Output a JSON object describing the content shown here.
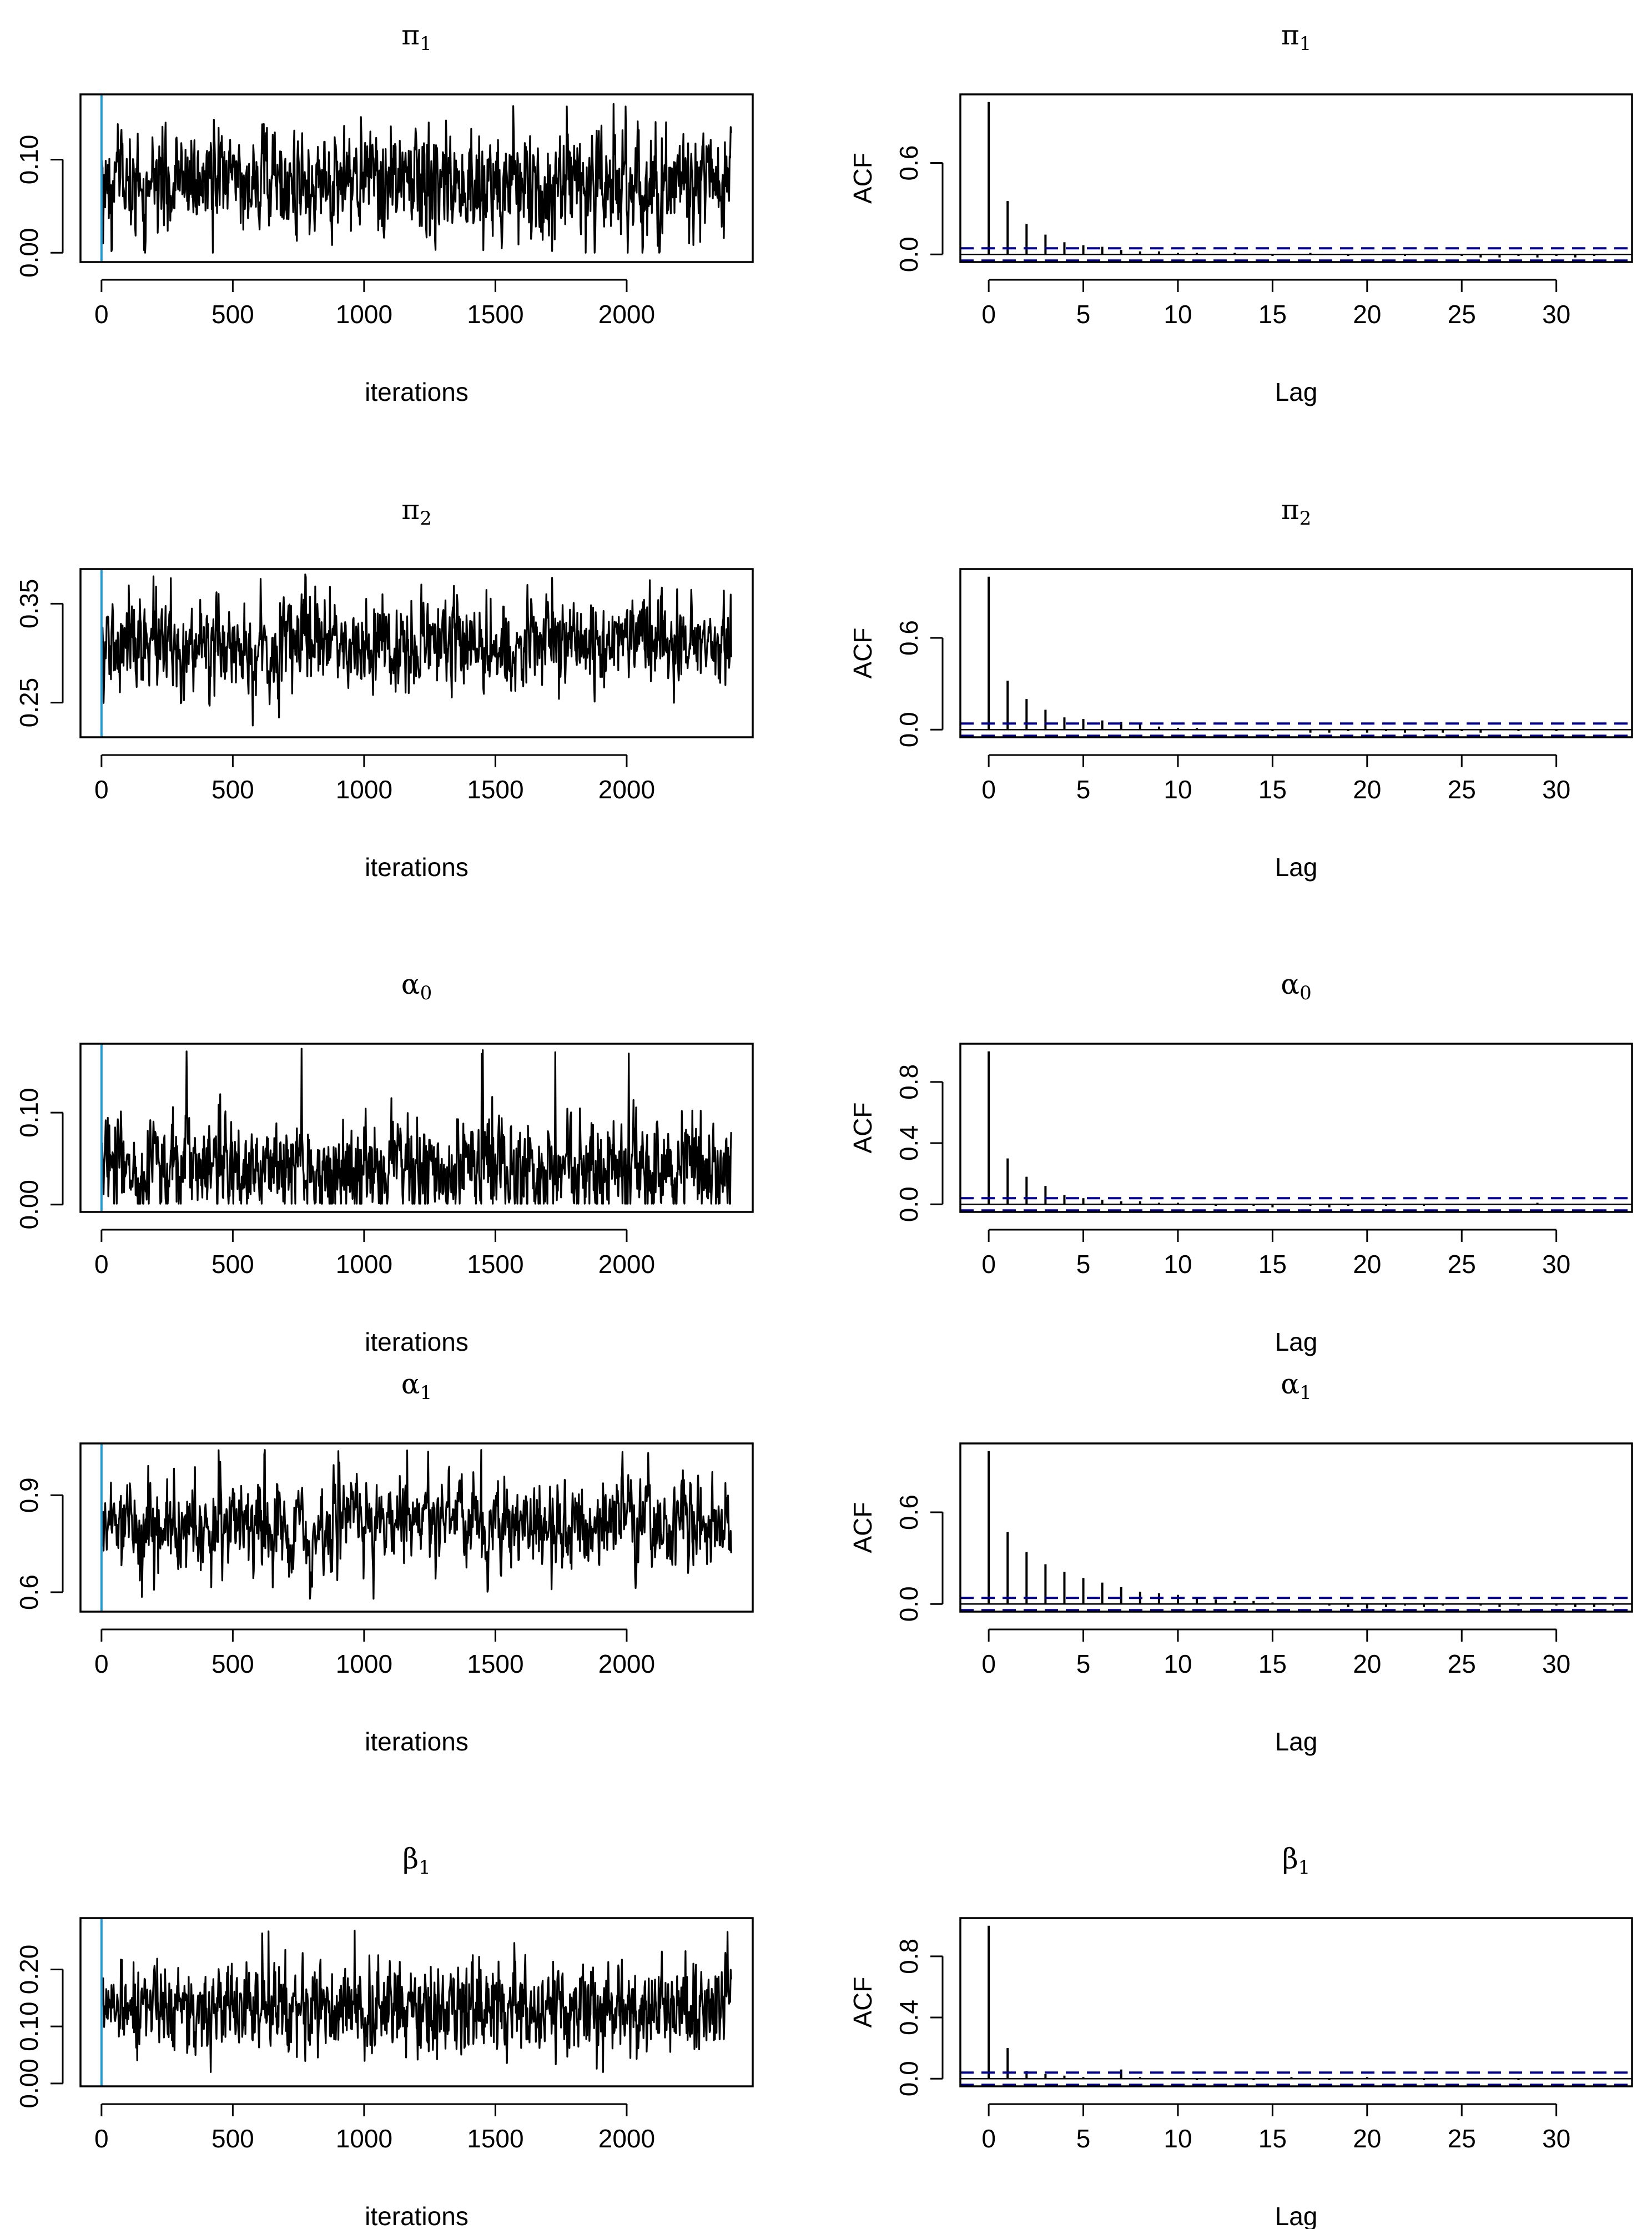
{
  "figure": {
    "description_free": true
  },
  "colors": {
    "trace": "#000000",
    "burnin_line": "#1f9ad6",
    "conf_band": "#00008b",
    "frame": "#000000"
  },
  "chart_data": [
    {
      "type": "line",
      "param": "pi1",
      "title_sym": "π",
      "title_sub": "1",
      "xlabel": "iterations",
      "ylabel": "",
      "xlim": [
        -80,
        2480
      ],
      "ylim": [
        -0.01,
        0.17
      ],
      "xticks": [
        0,
        500,
        1000,
        1500,
        2000
      ],
      "xtick_labels": [
        "0",
        "500",
        "1000",
        "1500",
        "2000"
      ],
      "yticks": [
        0.0,
        0.1
      ],
      "ytick_labels": [
        "0.00",
        "0.10"
      ],
      "n_iter": 2400,
      "burnin_x": 0,
      "mean": 0.075,
      "sd": 0.028,
      "min": 0.0,
      "max": 0.165,
      "rho": 0.3
    },
    {
      "type": "bar",
      "param": "pi1",
      "title_sym": "π",
      "title_sub": "1",
      "xlabel": "Lag",
      "ylabel": "ACF",
      "xlim": [
        -1.5,
        34
      ],
      "ylim": [
        -0.05,
        1.05
      ],
      "xticks": [
        0,
        5,
        10,
        15,
        20,
        25,
        30
      ],
      "xtick_labels": [
        "0",
        "5",
        "10",
        "15",
        "20",
        "25",
        "30"
      ],
      "yticks": [
        0.0,
        0.6
      ],
      "ytick_labels": [
        "0.0",
        "0.6"
      ],
      "lags": [
        0,
        1,
        2,
        3,
        4,
        5,
        6,
        7,
        8,
        9,
        10,
        11,
        12,
        13,
        14,
        15,
        16,
        17,
        18,
        19,
        20,
        21,
        22,
        23,
        24,
        25,
        26,
        27,
        28,
        29,
        30,
        31,
        32,
        33
      ],
      "acf": [
        1.0,
        0.35,
        0.2,
        0.13,
        0.08,
        0.06,
        0.05,
        0.03,
        0.02,
        0.02,
        0.01,
        0.01,
        0.0,
        0.01,
        0.0,
        -0.01,
        0.0,
        0.01,
        0.0,
        -0.01,
        0.0,
        0.0,
        -0.01,
        0.0,
        0.0,
        -0.01,
        -0.02,
        -0.02,
        -0.01,
        -0.02,
        -0.01,
        -0.02,
        -0.01,
        0.0
      ],
      "conf_band": 0.04
    },
    {
      "type": "line",
      "param": "pi2",
      "title_sym": "π",
      "title_sub": "2",
      "xlabel": "iterations",
      "ylabel": "",
      "xlim": [
        -80,
        2480
      ],
      "ylim": [
        0.215,
        0.385
      ],
      "xticks": [
        0,
        500,
        1000,
        1500,
        2000
      ],
      "xtick_labels": [
        "0",
        "500",
        "1000",
        "1500",
        "2000"
      ],
      "yticks": [
        0.25,
        0.35
      ],
      "ytick_labels": [
        "0.25",
        "0.35"
      ],
      "n_iter": 2400,
      "burnin_x": 0,
      "mean": 0.31,
      "sd": 0.022,
      "min": 0.225,
      "max": 0.38,
      "rho": 0.3
    },
    {
      "type": "bar",
      "param": "pi2",
      "title_sym": "π",
      "title_sub": "2",
      "xlabel": "Lag",
      "ylabel": "ACF",
      "xlim": [
        -1.5,
        34
      ],
      "ylim": [
        -0.05,
        1.05
      ],
      "xticks": [
        0,
        5,
        10,
        15,
        20,
        25,
        30
      ],
      "xtick_labels": [
        "0",
        "5",
        "10",
        "15",
        "20",
        "25",
        "30"
      ],
      "yticks": [
        0.0,
        0.6
      ],
      "ytick_labels": [
        "0.0",
        "0.6"
      ],
      "lags": [
        0,
        1,
        2,
        3,
        4,
        5,
        6,
        7,
        8,
        9,
        10,
        11,
        12,
        13,
        14,
        15,
        16,
        17,
        18,
        19,
        20,
        21,
        22,
        23,
        24,
        25,
        26,
        27,
        28,
        29,
        30,
        31,
        32,
        33
      ],
      "acf": [
        1.0,
        0.32,
        0.2,
        0.13,
        0.08,
        0.07,
        0.06,
        0.05,
        0.04,
        0.02,
        0.01,
        0.01,
        0.0,
        0.0,
        0.0,
        -0.01,
        0.0,
        -0.02,
        -0.02,
        -0.01,
        -0.02,
        -0.01,
        -0.02,
        -0.01,
        -0.02,
        -0.01,
        -0.02,
        0.0,
        -0.01,
        0.0,
        -0.01,
        0.0,
        0.0,
        0.0
      ],
      "conf_band": 0.04
    },
    {
      "type": "line",
      "param": "alpha0",
      "title_sym": "α",
      "title_sub": "0",
      "xlabel": "iterations",
      "ylabel": "",
      "xlim": [
        -80,
        2480
      ],
      "ylim": [
        -0.008,
        0.175
      ],
      "xticks": [
        0,
        500,
        1000,
        1500,
        2000
      ],
      "xtick_labels": [
        "0",
        "500",
        "1000",
        "1500",
        "2000"
      ],
      "yticks": [
        0.0,
        0.1
      ],
      "ytick_labels": [
        "0.00",
        "0.10"
      ],
      "n_iter": 2400,
      "burnin_x": 0,
      "mean": 0.04,
      "sd": 0.028,
      "min": 0.001,
      "max": 0.17,
      "rho": 0.3
    },
    {
      "type": "bar",
      "param": "alpha0",
      "title_sym": "α",
      "title_sub": "0",
      "xlabel": "Lag",
      "ylabel": "ACF",
      "xlim": [
        -1.5,
        34
      ],
      "ylim": [
        -0.05,
        1.05
      ],
      "xticks": [
        0,
        5,
        10,
        15,
        20,
        25,
        30
      ],
      "xtick_labels": [
        "0",
        "5",
        "10",
        "15",
        "20",
        "25",
        "30"
      ],
      "yticks": [
        0.0,
        0.4,
        0.8
      ],
      "ytick_labels": [
        "0.0",
        "0.4",
        "0.8"
      ],
      "lags": [
        0,
        1,
        2,
        3,
        4,
        5,
        6,
        7,
        8,
        9,
        10,
        11,
        12,
        13,
        14,
        15,
        16,
        17,
        18,
        19,
        20,
        21,
        22,
        23,
        24,
        25,
        26,
        27,
        28,
        29,
        30,
        31,
        32,
        33
      ],
      "acf": [
        1.0,
        0.3,
        0.18,
        0.12,
        0.06,
        0.04,
        0.03,
        0.02,
        0.02,
        0.01,
        0.01,
        0.0,
        -0.01,
        0.0,
        -0.01,
        -0.02,
        0.0,
        -0.01,
        -0.02,
        -0.01,
        0.0,
        -0.01,
        0.0,
        -0.01,
        0.0,
        0.0,
        0.0,
        0.0,
        0.0,
        0.01,
        0.0,
        0.0,
        0.0,
        0.0
      ],
      "conf_band": 0.04
    },
    {
      "type": "line",
      "param": "alpha1",
      "title_sym": "α",
      "title_sub": "1",
      "xlabel": "iterations",
      "ylabel": "",
      "xlim": [
        -80,
        2480
      ],
      "ylim": [
        0.54,
        1.06
      ],
      "xticks": [
        0,
        500,
        1000,
        1500,
        2000
      ],
      "xtick_labels": [
        "0",
        "500",
        "1000",
        "1500",
        "2000"
      ],
      "yticks": [
        0.6,
        0.9
      ],
      "ytick_labels": [
        "0.6",
        "0.9"
      ],
      "n_iter": 2400,
      "burnin_x": 0,
      "mean": 0.81,
      "sd": 0.07,
      "min": 0.58,
      "max": 1.04,
      "rho": 0.45
    },
    {
      "type": "bar",
      "param": "alpha1",
      "title_sym": "α",
      "title_sub": "1",
      "xlabel": "Lag",
      "ylabel": "ACF",
      "xlim": [
        -1.5,
        34
      ],
      "ylim": [
        -0.05,
        1.05
      ],
      "xticks": [
        0,
        5,
        10,
        15,
        20,
        25,
        30
      ],
      "xtick_labels": [
        "0",
        "5",
        "10",
        "15",
        "20",
        "25",
        "30"
      ],
      "yticks": [
        0.0,
        0.6
      ],
      "ytick_labels": [
        "0.0",
        "0.6"
      ],
      "lags": [
        0,
        1,
        2,
        3,
        4,
        5,
        6,
        7,
        8,
        9,
        10,
        11,
        12,
        13,
        14,
        15,
        16,
        17,
        18,
        19,
        20,
        21,
        22,
        23,
        24,
        25,
        26,
        27,
        28,
        29,
        30,
        31,
        32,
        33
      ],
      "acf": [
        1.0,
        0.47,
        0.34,
        0.26,
        0.21,
        0.17,
        0.14,
        0.11,
        0.08,
        0.07,
        0.06,
        0.04,
        0.03,
        0.02,
        0.02,
        0.01,
        0.0,
        0.0,
        -0.01,
        -0.02,
        -0.03,
        -0.02,
        -0.01,
        -0.02,
        -0.01,
        0.0,
        -0.01,
        -0.02,
        -0.01,
        0.0,
        -0.01,
        -0.02,
        -0.02,
        -0.01
      ],
      "conf_band": 0.04
    },
    {
      "type": "line",
      "param": "beta1",
      "title_sym": "β",
      "title_sub": "1",
      "xlabel": "iterations",
      "ylabel": "",
      "xlim": [
        -80,
        2480
      ],
      "ylim": [
        -0.005,
        0.29
      ],
      "xticks": [
        0,
        500,
        1000,
        1500,
        2000
      ],
      "xtick_labels": [
        "0",
        "500",
        "1000",
        "1500",
        "2000"
      ],
      "yticks": [
        0.0,
        0.1,
        0.2
      ],
      "ytick_labels": [
        "0.00",
        "0.10",
        "0.20"
      ],
      "n_iter": 2400,
      "burnin_x": 0,
      "mean": 0.13,
      "sd": 0.04,
      "min": 0.02,
      "max": 0.27,
      "rho": 0.25
    },
    {
      "type": "bar",
      "param": "beta1",
      "title_sym": "β",
      "title_sub": "1",
      "xlabel": "Lag",
      "ylabel": "ACF",
      "xlim": [
        -1.5,
        34
      ],
      "ylim": [
        -0.05,
        1.05
      ],
      "xticks": [
        0,
        5,
        10,
        15,
        20,
        25,
        30
      ],
      "xtick_labels": [
        "0",
        "5",
        "10",
        "15",
        "20",
        "25",
        "30"
      ],
      "yticks": [
        0.0,
        0.4,
        0.8
      ],
      "ytick_labels": [
        "0.0",
        "0.4",
        "0.8"
      ],
      "lags": [
        0,
        1,
        2,
        3,
        4,
        5,
        6,
        7,
        8,
        9,
        10,
        11,
        12,
        13,
        14,
        15,
        16,
        17,
        18,
        19,
        20,
        21,
        22,
        23,
        24,
        25,
        26,
        27,
        28,
        29,
        30,
        31,
        32,
        33
      ],
      "acf": [
        1.0,
        0.2,
        0.05,
        0.03,
        0.02,
        0.01,
        0.0,
        0.06,
        0.01,
        0.0,
        0.0,
        -0.01,
        0.0,
        0.0,
        -0.01,
        0.0,
        0.01,
        0.0,
        -0.01,
        0.0,
        0.01,
        0.0,
        0.0,
        -0.01,
        0.0,
        0.0,
        0.0,
        0.0,
        -0.01,
        0.0,
        0.0,
        0.0,
        0.0,
        0.0
      ],
      "conf_band": 0.04
    }
  ]
}
